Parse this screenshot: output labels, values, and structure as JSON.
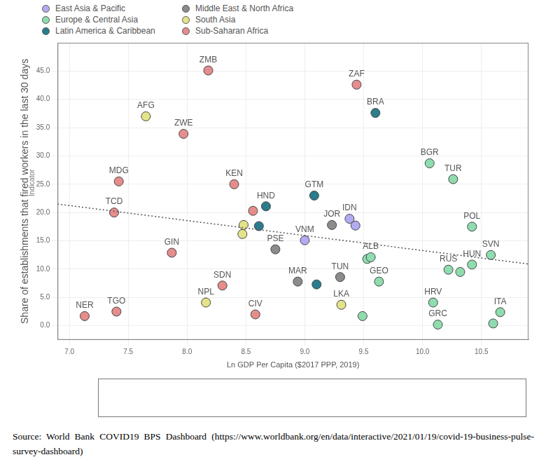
{
  "chart_data": {
    "type": "scatter",
    "x_label": "Ln GDP Per Capita ($2017 PPP, 2019)",
    "y_label": "Share of establishments that fired workers in the last 30 days",
    "y_sublabel": "Indicator",
    "source": "Source: World Bank COVID19 BPS Dashboard (https://www.worldbank.org/en/data/interactive/2021/01/19/covid-19-business-pulse-survey-dashboard)",
    "xlim": [
      6.9,
      10.9
    ],
    "ylim": [
      -2.5,
      50
    ],
    "xticks": [
      {
        "value": 7,
        "label": "7.0"
      },
      {
        "value": 7.5,
        "label": "7.5"
      },
      {
        "value": 8,
        "label": "8.0"
      },
      {
        "value": 8.5,
        "label": "8.5"
      },
      {
        "value": 9,
        "label": "9.0"
      },
      {
        "value": 9.5,
        "label": "9.5"
      },
      {
        "value": 10,
        "label": "10.0"
      },
      {
        "value": 10.5,
        "label": "10.5"
      }
    ],
    "yticks": [
      {
        "value": 0,
        "label": "0.0"
      },
      {
        "value": 5,
        "label": "5.0"
      },
      {
        "value": 10,
        "label": "10.0"
      },
      {
        "value": 15,
        "label": "15.0"
      },
      {
        "value": 20,
        "label": "20.0"
      },
      {
        "value": 25,
        "label": "25.0"
      },
      {
        "value": 30,
        "label": "30.0"
      },
      {
        "value": 35,
        "label": "35.0"
      },
      {
        "value": 40,
        "label": "40.0"
      },
      {
        "value": 45,
        "label": "45.0"
      }
    ],
    "grid": true,
    "legend": "top-left",
    "marker": "circle",
    "series": [
      {
        "name": "East Asia & Pacific",
        "color": "#b3abf2",
        "x": [
          9.0,
          9.38,
          9.43
        ],
        "values": [
          15.1,
          18.9,
          17.7
        ],
        "labels": [
          "VNM",
          "IDN",
          null
        ]
      },
      {
        "name": "Europe & Central Asia",
        "color": "#8fdcae",
        "x": [
          9.49,
          9.53,
          9.56,
          9.63,
          10.06,
          10.09,
          10.13,
          10.22,
          10.26,
          10.32,
          10.42,
          10.42,
          10.58,
          10.6,
          10.66
        ],
        "values": [
          1.7,
          11.8,
          12.1,
          7.8,
          28.7,
          4.1,
          0.2,
          9.9,
          25.9,
          9.5,
          10.8,
          17.5,
          12.5,
          0.4,
          2.4
        ],
        "labels": [
          null,
          null,
          "ALB",
          "GEO",
          "BGR",
          "HRV",
          "GRC",
          "RUS",
          "TUR",
          null,
          "HUN",
          "POL",
          "SVN",
          null,
          "ITA"
        ]
      },
      {
        "name": "Latin America & Caribbean",
        "color": "#2b7d8c",
        "x": [
          8.61,
          8.67,
          9.08,
          9.1,
          9.6
        ],
        "values": [
          17.6,
          21.1,
          23.0,
          7.3,
          37.6
        ],
        "labels": [
          null,
          "HND",
          "GTM",
          null,
          "BRA"
        ]
      },
      {
        "name": "Middle East & North Africa",
        "color": "#8c8c8c",
        "x": [
          8.75,
          8.94,
          9.23,
          9.3
        ],
        "values": [
          13.5,
          7.8,
          17.8,
          8.6
        ],
        "labels": [
          "PSE",
          "MAR",
          "JOR",
          "TUN"
        ]
      },
      {
        "name": "South Asia",
        "color": "#e3e38a",
        "x": [
          7.65,
          8.16,
          8.47,
          8.48,
          9.31
        ],
        "values": [
          37.0,
          4.1,
          16.2,
          17.8,
          3.7
        ],
        "labels": [
          "AFG",
          "NPL",
          null,
          null,
          "LKA"
        ]
      },
      {
        "name": "Sub-Saharan Africa",
        "color": "#e58c8c",
        "x": [
          7.13,
          7.38,
          7.4,
          7.42,
          7.87,
          7.97,
          8.18,
          8.3,
          8.4,
          8.56,
          8.58,
          9.44
        ],
        "values": [
          1.7,
          20.0,
          2.5,
          25.5,
          12.9,
          33.9,
          45.1,
          7.1,
          25.0,
          20.3,
          2.0,
          42.6
        ],
        "labels": [
          "NER",
          "TCD",
          "TGO",
          "MDG",
          "GIN",
          "ZWE",
          "ZMB",
          "SDN",
          "KEN",
          null,
          "CIV",
          "ZAF"
        ]
      }
    ],
    "trend_line": {
      "x": [
        6.9,
        10.9
      ],
      "values": [
        21.5,
        10.9
      ],
      "color": "#555555",
      "line_style": "dotted"
    }
  }
}
